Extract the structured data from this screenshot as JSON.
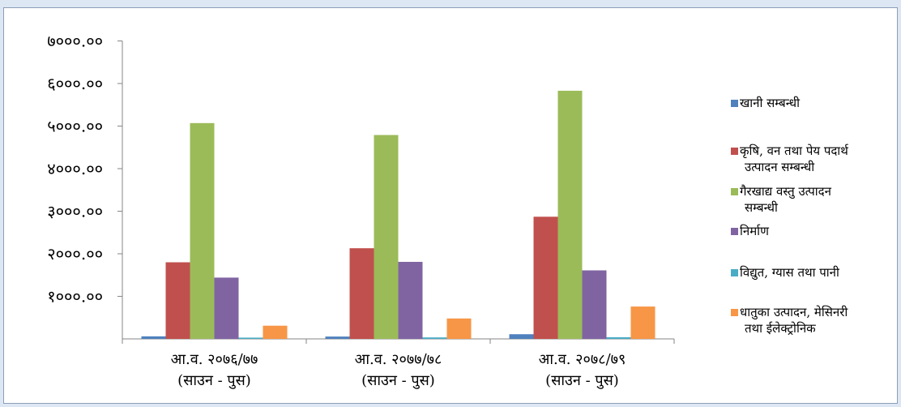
{
  "chart_data": {
    "type": "bar",
    "title": "",
    "xlabel": "",
    "ylabel": "",
    "ylim": [
      0,
      7000
    ],
    "y_ticks": [
      "१०००.००",
      "२०००.००",
      "३०००.००",
      "४०००.००",
      "५०००.००",
      "६०००.००",
      "७०००.००"
    ],
    "y_tick_values": [
      1000,
      2000,
      3000,
      4000,
      5000,
      6000,
      7000
    ],
    "grid": false,
    "legend_position": "right",
    "categories": [
      [
        "आ.व. २०७६/७७",
        "(साउन - पुस)"
      ],
      [
        "आ.व. २०७७/७८",
        "(साउन - पुस)"
      ],
      [
        "आ.व. २०७८/७९",
        "(साउन - पुस)"
      ]
    ],
    "series": [
      {
        "name": [
          "खानी सम्बन्धी"
        ],
        "color": "#4f81bd",
        "values": [
          60,
          55,
          110
        ]
      },
      {
        "name": [
          "कृषि, वन तथा पेय पदार्थ",
          "उत्पादन सम्बन्धी"
        ],
        "color": "#c0504d",
        "values": [
          1800,
          2130,
          2870
        ]
      },
      {
        "name": [
          "गैरखाद्य वस्तु उत्पादन",
          "सम्बन्धी"
        ],
        "color": "#9bbb59",
        "values": [
          5070,
          4790,
          5830
        ]
      },
      {
        "name": [
          "निर्माण"
        ],
        "color": "#8064a2",
        "values": [
          1440,
          1810,
          1610
        ]
      },
      {
        "name": [
          "विद्युत, ग्यास तथा पानी"
        ],
        "color": "#4bacc6",
        "values": [
          30,
          35,
          40
        ]
      },
      {
        "name": [
          "धातुका उत्पादन, मेसिनरी",
          "तथा ईलेक्ट्रोनिक"
        ],
        "color": "#f79646",
        "values": [
          310,
          480,
          760
        ]
      }
    ]
  }
}
